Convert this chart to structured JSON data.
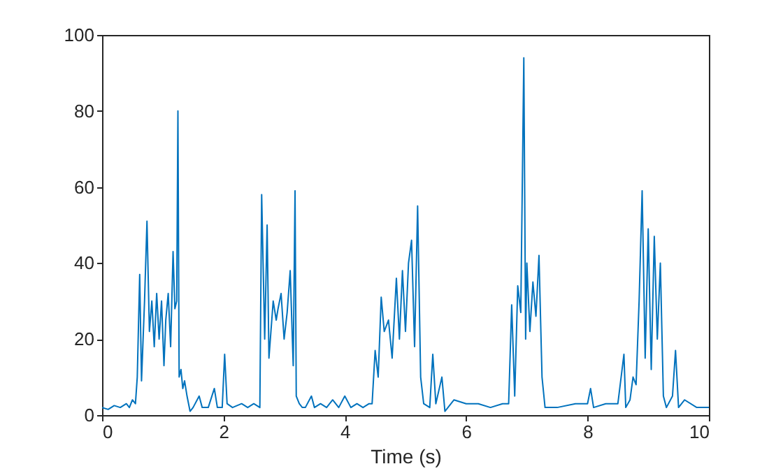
{
  "chart_data": {
    "type": "line",
    "xlabel": "Time (s)",
    "xlim": [
      0,
      10
    ],
    "ylim": [
      0,
      100
    ],
    "xticks": [
      0,
      2,
      4,
      6,
      8,
      10
    ],
    "yticks": [
      0,
      20,
      40,
      60,
      80,
      100
    ],
    "grid": false,
    "marker": "none",
    "line_style": "solid",
    "x": [
      0,
      0.1,
      0.2,
      0.3,
      0.4,
      0.45,
      0.5,
      0.55,
      0.58,
      0.62,
      0.65,
      0.7,
      0.74,
      0.78,
      0.82,
      0.86,
      0.9,
      0.94,
      0.98,
      1.02,
      1.05,
      1.09,
      1.13,
      1.17,
      1.2,
      1.23,
      1.25,
      1.27,
      1.3,
      1.33,
      1.36,
      1.4,
      1.45,
      1.5,
      1.6,
      1.65,
      1.75,
      1.85,
      1.9,
      1.98,
      2.02,
      2.06,
      2.15,
      2.3,
      2.4,
      2.5,
      2.6,
      2.63,
      2.68,
      2.72,
      2.75,
      2.82,
      2.87,
      2.9,
      2.95,
      3.0,
      3.05,
      3.1,
      3.15,
      3.18,
      3.2,
      3.25,
      3.3,
      3.35,
      3.45,
      3.5,
      3.6,
      3.7,
      3.8,
      3.9,
      4.0,
      4.1,
      4.2,
      4.3,
      4.4,
      4.45,
      4.5,
      4.55,
      4.6,
      4.65,
      4.72,
      4.78,
      4.85,
      4.9,
      4.95,
      5.0,
      5.05,
      5.1,
      5.15,
      5.2,
      5.25,
      5.3,
      5.4,
      5.45,
      5.5,
      5.6,
      5.65,
      5.8,
      6.0,
      6.2,
      6.4,
      6.6,
      6.7,
      6.75,
      6.8,
      6.85,
      6.9,
      6.95,
      6.98,
      7.0,
      7.05,
      7.1,
      7.15,
      7.2,
      7.25,
      7.3,
      7.5,
      7.8,
      8.0,
      8.05,
      8.1,
      8.3,
      8.5,
      8.6,
      8.63,
      8.7,
      8.75,
      8.8,
      8.85,
      8.9,
      8.95,
      9.0,
      9.05,
      9.1,
      9.15,
      9.2,
      9.25,
      9.3,
      9.4,
      9.45,
      9.5,
      9.6,
      9.8,
      10
    ],
    "values": [
      2,
      1.5,
      2.5,
      2,
      3,
      2,
      4,
      3,
      10,
      37,
      9,
      30,
      51,
      22,
      30,
      18,
      32,
      20,
      30,
      13,
      25,
      32,
      18,
      43,
      28,
      30,
      80,
      10,
      12,
      7,
      9,
      5,
      1,
      2,
      5,
      2,
      2,
      7,
      2,
      2,
      16,
      3,
      2,
      3,
      2,
      3,
      2,
      58,
      20,
      50,
      15,
      30,
      25,
      28,
      32,
      20,
      27,
      38,
      13,
      59,
      5,
      3,
      2,
      2,
      5,
      2,
      3,
      2,
      4,
      2,
      5,
      2,
      3,
      2,
      3,
      3,
      17,
      10,
      31,
      22,
      25,
      15,
      36,
      20,
      38,
      22,
      40,
      46,
      18,
      55,
      10,
      3,
      2,
      16,
      3,
      10,
      1,
      4,
      3,
      3,
      2,
      3,
      3,
      29,
      5,
      34,
      27,
      94,
      20,
      40,
      22,
      35,
      26,
      42,
      10,
      2,
      2,
      3,
      3,
      7,
      2,
      3,
      3,
      16,
      2,
      4,
      10,
      8,
      30,
      59,
      15,
      49,
      12,
      47,
      20,
      40,
      5,
      2,
      5,
      17,
      2,
      4,
      2,
      2
    ],
    "color": "#0072bd"
  }
}
